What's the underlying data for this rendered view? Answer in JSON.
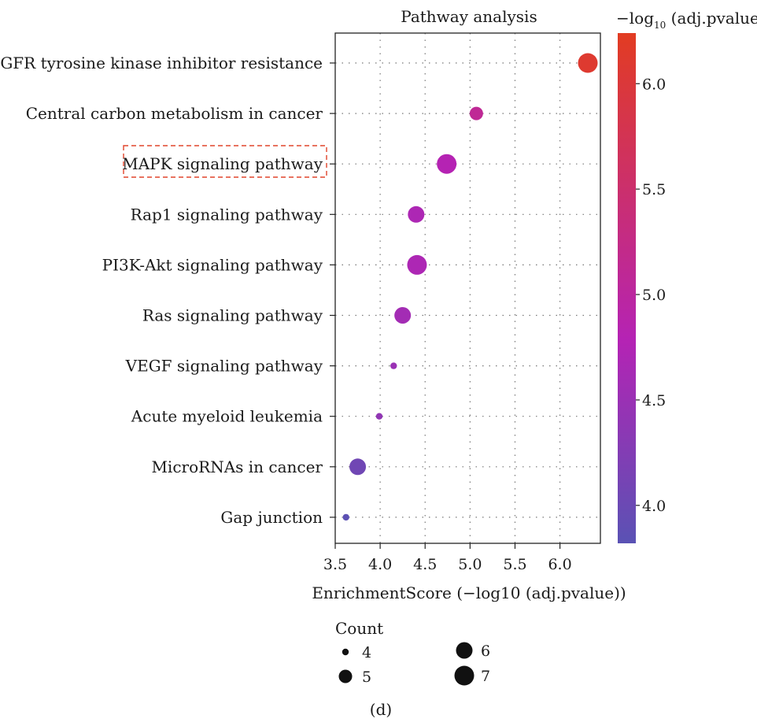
{
  "chart_data": {
    "type": "scatter",
    "title": "Pathway analysis",
    "xlabel": "EnrichmentScore (−log10 (adj.pvalue))",
    "xlim": [
      3.5,
      6.45
    ],
    "xticks": [
      3.5,
      4.0,
      4.5,
      5.0,
      5.5,
      6.0
    ],
    "xtick_labels": [
      "3.5",
      "4.0",
      "4.5",
      "5.0",
      "5.5",
      "6.0"
    ],
    "grid": true,
    "categories": [
      "EGFR tyrosine kinase inhibitor resistance",
      "Central carbon metabolism in cancer",
      "MAPK signaling pathway",
      "Rap1 signaling pathway",
      "PI3K-Akt signaling pathway",
      "Ras signaling pathway",
      "VEGF signaling pathway",
      "Acute myeloid leukemia",
      "MicroRNAs in cancer",
      "Gap junction"
    ],
    "highlighted_category": "MAPK signaling pathway",
    "points": [
      {
        "pathway": "EGFR tyrosine kinase inhibitor resistance",
        "enrichment": 6.31,
        "neglog10_padj": 6.1,
        "count": 7
      },
      {
        "pathway": "Central carbon metabolism in cancer",
        "enrichment": 5.07,
        "neglog10_padj": 5.1,
        "count": 5
      },
      {
        "pathway": "MAPK signaling pathway",
        "enrichment": 4.74,
        "neglog10_padj": 4.8,
        "count": 7
      },
      {
        "pathway": "Rap1 signaling pathway",
        "enrichment": 4.4,
        "neglog10_padj": 4.7,
        "count": 6
      },
      {
        "pathway": "PI3K-Akt signaling pathway",
        "enrichment": 4.41,
        "neglog10_padj": 4.7,
        "count": 7
      },
      {
        "pathway": "Ras signaling pathway",
        "enrichment": 4.25,
        "neglog10_padj": 4.6,
        "count": 6
      },
      {
        "pathway": "VEGF signaling pathway",
        "enrichment": 4.15,
        "neglog10_padj": 4.5,
        "count": 4
      },
      {
        "pathway": "Acute myeloid leukemia",
        "enrichment": 3.99,
        "neglog10_padj": 4.4,
        "count": 4
      },
      {
        "pathway": "MicroRNAs in cancer",
        "enrichment": 3.75,
        "neglog10_padj": 4.05,
        "count": 6
      },
      {
        "pathway": "Gap junction",
        "enrichment": 3.62,
        "neglog10_padj": 3.85,
        "count": 4
      }
    ],
    "colorbar": {
      "title_prefix": "−log",
      "title_sub": "10",
      "title_suffix": " (adj.pvalue)",
      "range": [
        3.82,
        6.24
      ],
      "ticks": [
        4.0,
        4.5,
        5.0,
        5.5,
        6.0
      ],
      "tick_labels": [
        "4.0",
        "4.5",
        "5.0",
        "5.5",
        "6.0"
      ],
      "low_color": "#5a52b4",
      "mid_color": "#b523b4",
      "high_color": "#e23c22"
    },
    "size_legend": {
      "title": "Count",
      "entries": [
        {
          "label": "4",
          "count": 4
        },
        {
          "label": "5",
          "count": 5
        },
        {
          "label": "6",
          "count": 6
        },
        {
          "label": "7",
          "count": 7
        }
      ]
    }
  },
  "panel_label": "(d)"
}
